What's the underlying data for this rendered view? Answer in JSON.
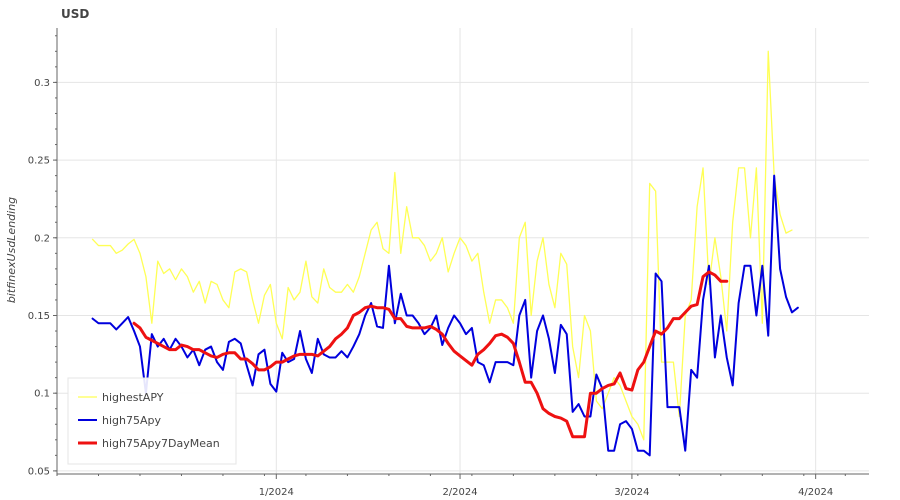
{
  "chart_data": {
    "type": "line",
    "title": "USD",
    "xlabel": "",
    "ylabel": "bitfinexUsdLending",
    "x_tick_labels": [
      "1/2024",
      "2/2024",
      "3/2024",
      "4/2024"
    ],
    "x_ticks": [
      "2024-01-01",
      "2024-02-01",
      "2024-03-01",
      "2024-04-01"
    ],
    "xlim": [
      "2023-11-25",
      "2024-04-10"
    ],
    "ylim": [
      0.048,
      0.335
    ],
    "y_ticks": [
      0.05,
      0.1,
      0.15,
      0.2,
      0.25,
      0.3
    ],
    "y_tick_labels": [
      "0.05",
      "0.1",
      "0.15",
      "0.2",
      "0.25",
      "0.3"
    ],
    "grid": true,
    "legend_position": "bottom-left",
    "series": [
      {
        "name": "highestAPY",
        "color": "#ffff55",
        "x_start": "2023-12-01",
        "values": [
          0.199,
          0.195,
          0.195,
          0.195,
          0.19,
          0.192,
          0.196,
          0.199,
          0.19,
          0.175,
          0.145,
          0.185,
          0.177,
          0.18,
          0.173,
          0.18,
          0.175,
          0.165,
          0.172,
          0.158,
          0.172,
          0.17,
          0.16,
          0.155,
          0.178,
          0.18,
          0.178,
          0.16,
          0.145,
          0.163,
          0.17,
          0.145,
          0.135,
          0.168,
          0.16,
          0.165,
          0.185,
          0.162,
          0.158,
          0.18,
          0.168,
          0.165,
          0.165,
          0.17,
          0.165,
          0.175,
          0.19,
          0.205,
          0.21,
          0.193,
          0.19,
          0.242,
          0.19,
          0.22,
          0.2,
          0.2,
          0.195,
          0.185,
          0.19,
          0.2,
          0.178,
          0.19,
          0.2,
          0.195,
          0.185,
          0.19,
          0.165,
          0.145,
          0.16,
          0.16,
          0.155,
          0.145,
          0.2,
          0.21,
          0.15,
          0.185,
          0.2,
          0.17,
          0.155,
          0.19,
          0.183,
          0.13,
          0.11,
          0.15,
          0.14,
          0.095,
          0.09,
          0.1,
          0.11,
          0.105,
          0.095,
          0.085,
          0.08,
          0.07,
          0.235,
          0.23,
          0.12,
          0.12,
          0.12,
          0.085,
          0.15,
          0.16,
          0.22,
          0.245,
          0.17,
          0.2,
          0.175,
          0.14,
          0.21,
          0.245,
          0.245,
          0.2,
          0.245,
          0.145,
          0.32,
          0.24,
          0.215,
          0.203,
          0.205
        ]
      },
      {
        "name": "high75Apy",
        "color": "#0000dd",
        "x_start": "2023-12-01",
        "values": [
          0.148,
          0.145,
          0.145,
          0.145,
          0.141,
          0.145,
          0.149,
          0.14,
          0.13,
          0.1,
          0.138,
          0.13,
          0.135,
          0.128,
          0.135,
          0.13,
          0.123,
          0.128,
          0.118,
          0.128,
          0.13,
          0.12,
          0.115,
          0.133,
          0.135,
          0.132,
          0.118,
          0.105,
          0.125,
          0.128,
          0.106,
          0.101,
          0.126,
          0.12,
          0.122,
          0.14,
          0.122,
          0.113,
          0.135,
          0.125,
          0.123,
          0.123,
          0.127,
          0.123,
          0.13,
          0.138,
          0.15,
          0.158,
          0.143,
          0.142,
          0.182,
          0.145,
          0.164,
          0.15,
          0.15,
          0.145,
          0.138,
          0.142,
          0.15,
          0.131,
          0.142,
          0.15,
          0.145,
          0.138,
          0.142,
          0.12,
          0.118,
          0.107,
          0.12,
          0.12,
          0.12,
          0.118,
          0.15,
          0.16,
          0.11,
          0.14,
          0.15,
          0.135,
          0.113,
          0.144,
          0.138,
          0.088,
          0.093,
          0.085,
          0.085,
          0.112,
          0.103,
          0.063,
          0.063,
          0.08,
          0.082,
          0.077,
          0.063,
          0.063,
          0.06,
          0.177,
          0.172,
          0.091,
          0.091,
          0.091,
          0.063,
          0.115,
          0.11,
          0.16,
          0.182,
          0.123,
          0.15,
          0.123,
          0.105,
          0.158,
          0.182,
          0.182,
          0.15,
          0.182,
          0.137,
          0.24,
          0.18,
          0.162,
          0.152,
          0.155
        ]
      },
      {
        "name": "high75Apy7DayMean",
        "color": "#ee1111",
        "x_start": "2023-12-08",
        "values": [
          0.145,
          0.142,
          0.136,
          0.134,
          0.132,
          0.13,
          0.128,
          0.128,
          0.131,
          0.13,
          0.128,
          0.128,
          0.126,
          0.124,
          0.123,
          0.125,
          0.126,
          0.126,
          0.122,
          0.122,
          0.119,
          0.115,
          0.115,
          0.117,
          0.12,
          0.12,
          0.122,
          0.124,
          0.125,
          0.125,
          0.125,
          0.124,
          0.127,
          0.13,
          0.135,
          0.138,
          0.142,
          0.15,
          0.152,
          0.155,
          0.156,
          0.155,
          0.155,
          0.154,
          0.148,
          0.148,
          0.143,
          0.142,
          0.142,
          0.142,
          0.143,
          0.141,
          0.138,
          0.132,
          0.127,
          0.124,
          0.121,
          0.118,
          0.125,
          0.128,
          0.132,
          0.137,
          0.138,
          0.136,
          0.132,
          0.12,
          0.107,
          0.107,
          0.1,
          0.09,
          0.087,
          0.085,
          0.084,
          0.082,
          0.072,
          0.072,
          0.072,
          0.1,
          0.1,
          0.103,
          0.105,
          0.106,
          0.113,
          0.103,
          0.102,
          0.115,
          0.12,
          0.13,
          0.14,
          0.138,
          0.142,
          0.148,
          0.148,
          0.152,
          0.156,
          0.157,
          0.175,
          0.178,
          0.176,
          0.172,
          0.172
        ]
      }
    ]
  }
}
